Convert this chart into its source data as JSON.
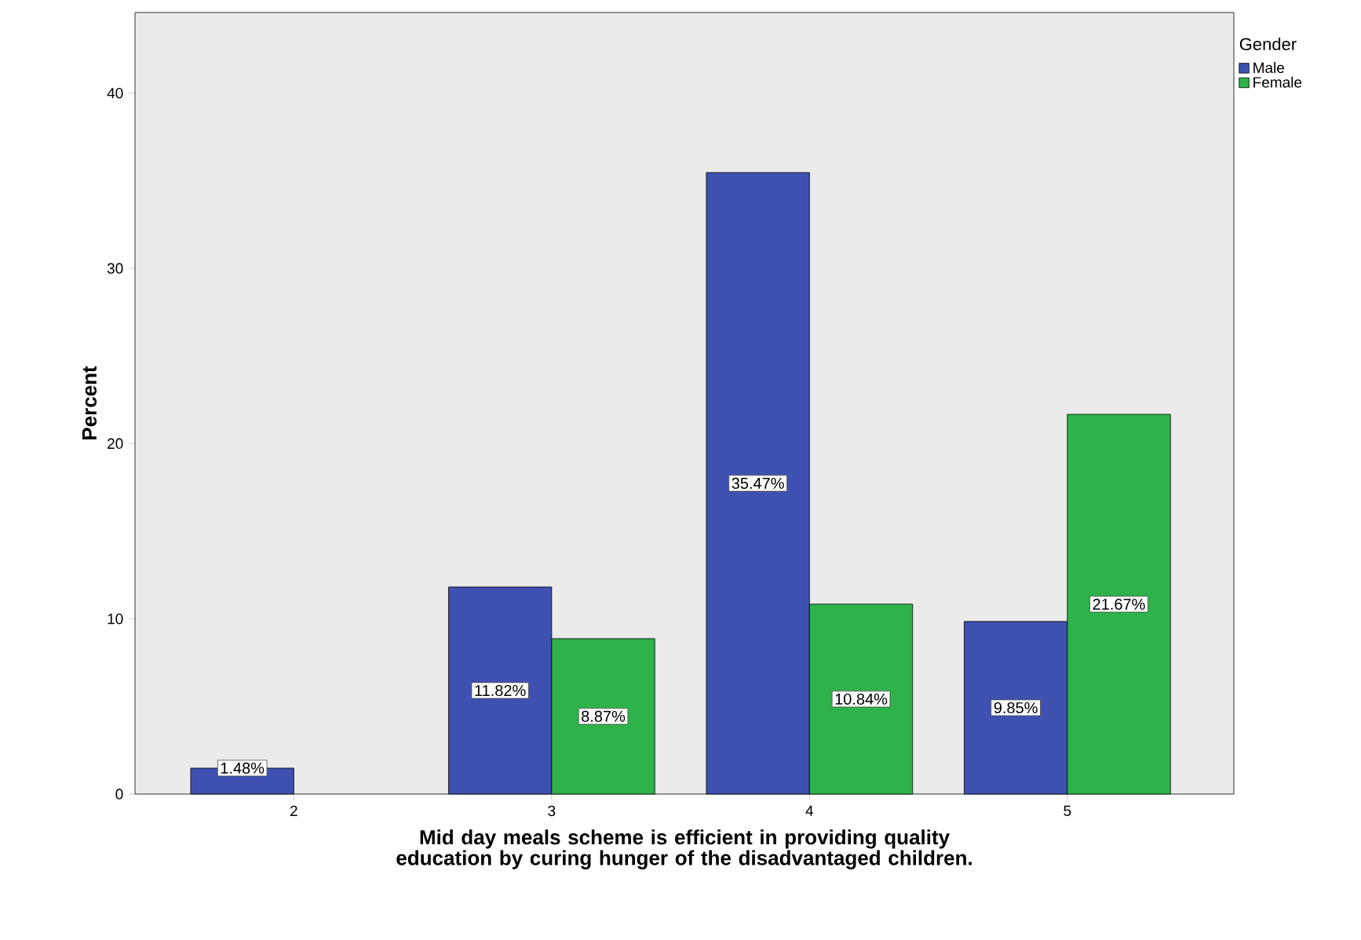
{
  "chart_data": {
    "type": "bar",
    "xlabel": "Mid day meals scheme is efficient in providing quality education by curing hunger of the disadvantaged children.",
    "ylabel": "Percent",
    "legend_title": "Gender",
    "legend": "top right",
    "categories": [
      "2",
      "3",
      "4",
      "5"
    ],
    "ylim": [
      0,
      44.6
    ],
    "yticks": [
      0,
      10,
      20,
      30,
      40
    ],
    "series": [
      {
        "name": "Male",
        "color": "#3f51b0",
        "values": [
          1.48,
          11.82,
          35.47,
          9.85
        ],
        "value_labels": [
          "1.48%",
          "11.82%",
          "35.47%",
          "9.85%"
        ]
      },
      {
        "name": "Female",
        "color": "#2db34a",
        "values": [
          null,
          8.87,
          10.84,
          21.67
        ],
        "value_labels": [
          null,
          "8.87%",
          "10.84%",
          "21.67%"
        ]
      }
    ]
  }
}
